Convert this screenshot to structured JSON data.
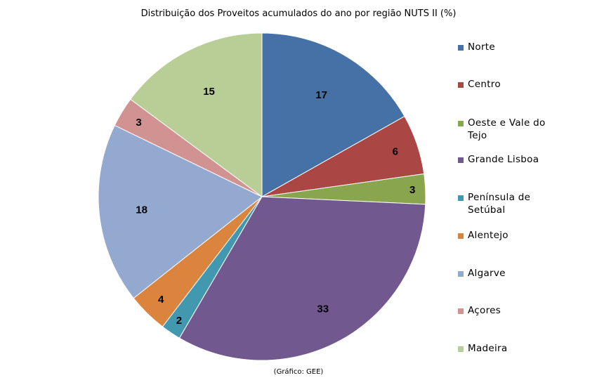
{
  "chart_data": {
    "type": "pie",
    "title": "Distribuição dos Proveitos acumulados do ano por região NUTS II (%)",
    "categories": [
      "Norte",
      "Centro",
      "Oeste e Vale do Tejo",
      "Grande Lisboa",
      "Península de Setúbal",
      "Alentejo",
      "Algarve",
      "Açores",
      "Madeira"
    ],
    "values": [
      17,
      6,
      3,
      33,
      2,
      4,
      18,
      3,
      15
    ],
    "data_labels": [
      "17",
      "6",
      "3",
      "33",
      "2",
      "4",
      "18",
      "3",
      "15"
    ],
    "colors": [
      "#4571a7",
      "#aa4644",
      "#89a54e",
      "#71588f",
      "#4198af",
      "#db843d",
      "#93a9cf",
      "#d19392",
      "#b9cd96"
    ],
    "legend_position": "right"
  },
  "legend_labels": {
    "l0": [
      "Norte"
    ],
    "l1": [
      "Centro"
    ],
    "l2": [
      "Oeste e Vale do",
      "Tejo"
    ],
    "l3": [
      "Grande Lisboa"
    ],
    "l4": [
      "Península de",
      "Setúbal"
    ],
    "l5": [
      "Alentejo"
    ],
    "l6": [
      "Algarve"
    ],
    "l7": [
      "Açores"
    ],
    "l8": [
      "Madeira"
    ]
  },
  "source": "(Gráfico: GEE)"
}
